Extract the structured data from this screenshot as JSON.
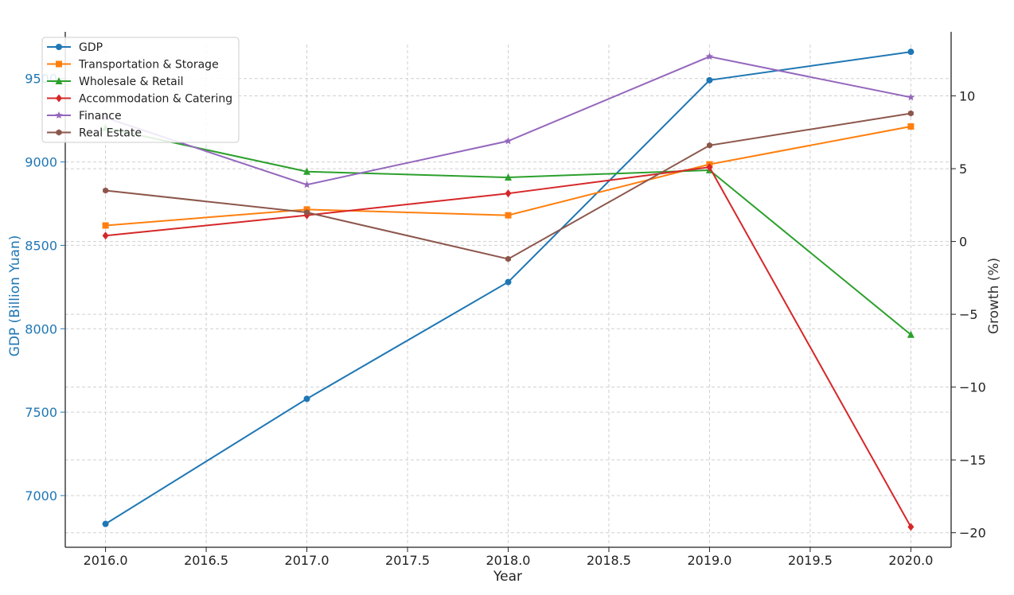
{
  "chart_data": {
    "type": "line",
    "xlabel": "Year",
    "ylabel_left": "GDP (Billion Yuan)",
    "ylabel_right": "Growth (%)",
    "x": [
      2016,
      2017,
      2018,
      2019,
      2020
    ],
    "x_ticks": [
      "2016.0",
      "2016.5",
      "2017.0",
      "2017.5",
      "2018.0",
      "2018.5",
      "2019.0",
      "2019.5",
      "2020.0"
    ],
    "left_ticks": [
      "7000",
      "7500",
      "8000",
      "8500",
      "9000",
      "9500"
    ],
    "right_ticks": [
      "−20",
      "−15",
      "−10",
      "−5",
      "0",
      "5",
      "10"
    ],
    "xlim": [
      2015.8,
      2020.2
    ],
    "ylim_left": [
      6690,
      9780
    ],
    "ylim_right": [
      -21,
      14.4
    ],
    "grid": true,
    "legend_position": "top-left",
    "gdp": {
      "name": "GDP",
      "color": "#1f77b4",
      "marker": "circle",
      "values": [
        6830,
        7580,
        8280,
        9490,
        9660
      ]
    },
    "growth_series": [
      {
        "name": "Transportation & Storage",
        "color": "#ff7f0e",
        "marker": "square",
        "values": [
          1.1,
          2.2,
          1.8,
          5.3,
          7.9
        ]
      },
      {
        "name": "Wholesale & Retail",
        "color": "#2ca02c",
        "marker": "triangle",
        "values": [
          7.8,
          4.8,
          4.4,
          4.9,
          -6.4
        ]
      },
      {
        "name": "Accommodation & Catering",
        "color": "#d62728",
        "marker": "diamond",
        "values": [
          0.4,
          1.8,
          3.3,
          5.1,
          -19.6
        ]
      },
      {
        "name": "Finance",
        "color": "#9467bd",
        "marker": "star",
        "values": [
          8.5,
          3.9,
          6.9,
          12.7,
          9.9
        ]
      },
      {
        "name": "Real Estate",
        "color": "#8c564b",
        "marker": "hexagon",
        "values": [
          3.5,
          2.0,
          -1.2,
          6.6,
          8.8
        ]
      }
    ]
  }
}
